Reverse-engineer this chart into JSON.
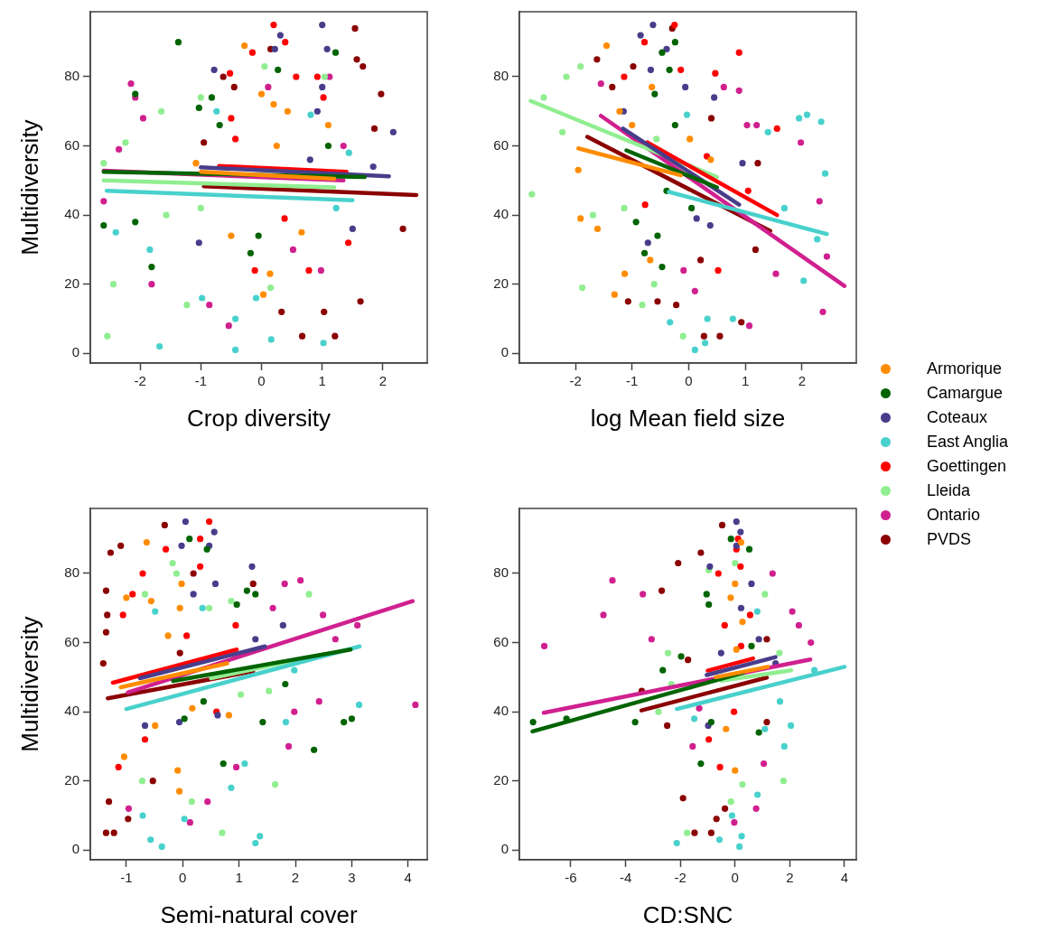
{
  "chart_data": [
    {
      "type": "scatter",
      "ylabel": "Multidiversity",
      "xlabel": "Crop diversity",
      "xlim": [
        -2.82,
        2.73
      ],
      "ylim": [
        -2.8,
        98.8
      ],
      "xticks": [
        -2,
        -1,
        0,
        1,
        2
      ],
      "yticks": [
        0,
        20,
        40,
        60,
        80
      ],
      "grid": false,
      "marker": "circle",
      "series": [
        {
          "type": "scatter",
          "color": "#ff8c00",
          "x": [
            -0.28,
            0,
            0.2,
            0.43,
            -1.08,
            -0.5,
            0.03,
            0.14,
            0.66,
            1.1,
            0.25
          ],
          "values": [
            89,
            75,
            72,
            70,
            55,
            34,
            17,
            23,
            35,
            66,
            60
          ]
        },
        {
          "type": "scatter",
          "color": "#006400",
          "x": [
            -1.37,
            -2.08,
            -2.6,
            -2.08,
            -1.03,
            -0.82,
            0.27,
            1.22,
            1.1,
            -0.05,
            -0.18,
            -1.81,
            -0.69
          ],
          "values": [
            90,
            75,
            37,
            38,
            71,
            74,
            82,
            87,
            60,
            34,
            29,
            25,
            66
          ]
        },
        {
          "type": "scatter",
          "color": "#483d8b",
          "x": [
            1,
            0.31,
            0.22,
            1.08,
            1,
            2.17,
            1.84,
            0.92,
            1.5,
            -0.78,
            -1.03,
            0.8
          ],
          "values": [
            95,
            92,
            88,
            88,
            77,
            64,
            54,
            70,
            36,
            82,
            32,
            56
          ]
        },
        {
          "type": "scatter",
          "color": "#48d1cc",
          "x": [
            -1.68,
            -0.43,
            0.16,
            1.02,
            -2.4,
            -1.84,
            -0.74,
            0.81,
            1.44,
            -0.43,
            -0.98,
            -0.09,
            1.23
          ],
          "values": [
            2,
            1,
            4,
            3,
            35,
            30,
            70,
            69,
            58,
            10,
            16,
            16,
            42
          ]
        },
        {
          "type": "scatter",
          "color": "#ff0000",
          "x": [
            0.2,
            0.39,
            -0.15,
            -0.52,
            0.57,
            0.92,
            1.02,
            -0.5,
            -0.11,
            0.78,
            0.38,
            1.43,
            -0.43
          ],
          "values": [
            95,
            90,
            87,
            81,
            80,
            80,
            74,
            68,
            24,
            24,
            39,
            32,
            62
          ]
        },
        {
          "type": "scatter",
          "color": "#90ee90",
          "x": [
            -2.54,
            -2.44,
            -2.6,
            -2.24,
            -1.65,
            -1,
            0.05,
            1.04,
            -1.23,
            -1.57,
            0.15,
            -1
          ],
          "values": [
            5,
            20,
            55,
            61,
            70,
            74,
            83,
            80,
            14,
            40,
            19,
            42
          ]
        },
        {
          "type": "scatter",
          "color": "#d0208f",
          "x": [
            -2.15,
            -2.08,
            -1.95,
            -2.35,
            -2.6,
            -1.81,
            -0.54,
            1.12,
            0.11,
            1.35,
            -0.86,
            0.98,
            0.52
          ],
          "values": [
            78,
            74,
            68,
            59,
            44,
            20,
            8,
            80,
            77,
            60,
            14,
            24,
            30
          ]
        },
        {
          "type": "scatter",
          "color": "#8b0000",
          "x": [
            1.54,
            1.57,
            1.67,
            1.97,
            1.86,
            2.33,
            0.15,
            -0.63,
            -0.45,
            0.67,
            1.21,
            1.63,
            1.03,
            -0.95,
            0.33
          ],
          "values": [
            94,
            85,
            83,
            75,
            65,
            36,
            88,
            80,
            77,
            5,
            5,
            15,
            12,
            61,
            12
          ]
        },
        {
          "type": "line",
          "marker": "none",
          "color": "#ff8c00",
          "x": [
            -1,
            1.2
          ],
          "values": [
            52.5,
            50.5
          ]
        },
        {
          "type": "line",
          "marker": "none",
          "color": "#006400",
          "x": [
            -2.6,
            1.7
          ],
          "values": [
            52.5,
            51
          ]
        },
        {
          "type": "line",
          "marker": "none",
          "color": "#483d8b",
          "x": [
            -1,
            2.1
          ],
          "values": [
            53.8,
            51.2
          ]
        },
        {
          "type": "line",
          "marker": "none",
          "color": "#48d1cc",
          "x": [
            -2.55,
            1.5
          ],
          "values": [
            47,
            44.3
          ]
        },
        {
          "type": "line",
          "marker": "none",
          "color": "#ff0000",
          "x": [
            -0.7,
            1.4
          ],
          "values": [
            54.2,
            52.5
          ]
        },
        {
          "type": "line",
          "marker": "none",
          "color": "#90ee90",
          "x": [
            -2.6,
            1.2
          ],
          "values": [
            50,
            48
          ]
        },
        {
          "type": "line",
          "marker": "none",
          "color": "#d0208f",
          "x": [
            -2.6,
            1.35
          ],
          "values": [
            52.8,
            50
          ]
        },
        {
          "type": "line",
          "marker": "none",
          "color": "#8b0000",
          "x": [
            -0.95,
            2.55
          ],
          "values": [
            48.3,
            45.8
          ]
        }
      ]
    },
    {
      "type": "scatter",
      "xlabel": "log Mean field size",
      "xlim": [
        -2.99,
        2.96
      ],
      "ylim": [
        -2.8,
        98.8
      ],
      "xticks": [
        -2,
        -1,
        0,
        1,
        2
      ],
      "yticks": [
        0,
        20,
        40,
        60,
        80
      ],
      "grid": false,
      "marker": "circle",
      "legend": "right",
      "series": [
        {
          "type": "scatter",
          "name": "Armorique",
          "color": "#ff8c00",
          "x": [
            -1.45,
            -1.22,
            -1,
            -1.95,
            -1.91,
            -1.61,
            -1.31,
            -1.13,
            -0.65,
            -0.68,
            0.02,
            0.39
          ],
          "values": [
            89,
            70,
            66,
            53,
            39,
            36,
            17,
            23,
            77,
            27,
            62,
            56
          ]
        },
        {
          "type": "scatter",
          "name": "Camargue",
          "color": "#006400",
          "x": [
            -0.24,
            -0.47,
            -0.34,
            -0.6,
            -0.24,
            -0.47,
            -0.78,
            -0.93,
            -0.55,
            0.05,
            -0.39
          ],
          "values": [
            90,
            87,
            82,
            75,
            66,
            25,
            29,
            38,
            34,
            42,
            47
          ]
        },
        {
          "type": "scatter",
          "name": "Coteaux",
          "color": "#483d8b",
          "x": [
            -0.63,
            -0.85,
            -0.39,
            -0.67,
            -0.06,
            0.45,
            0.95,
            -0.72,
            0.38,
            0.14,
            -1.15
          ],
          "values": [
            95,
            92,
            88,
            82,
            77,
            74,
            55,
            32,
            37,
            39,
            70
          ]
        },
        {
          "type": "scatter",
          "name": "East Anglia",
          "color": "#48d1cc",
          "x": [
            0.11,
            0.29,
            -0.33,
            1.95,
            2.09,
            2.34,
            2.41,
            2.27,
            2.03,
            1.4,
            0.78,
            0.33,
            1.69,
            -0.03
          ],
          "values": [
            1,
            3,
            9,
            68,
            69,
            67,
            52,
            33,
            21,
            64,
            10,
            10,
            42,
            69
          ]
        },
        {
          "type": "scatter",
          "name": "Goettingen",
          "color": "#ff0000",
          "x": [
            -0.25,
            -0.78,
            -1.14,
            0.47,
            0.89,
            1.56,
            0.52,
            -0.77,
            1.05,
            -0.14,
            0.32
          ],
          "values": [
            95,
            90,
            80,
            81,
            87,
            65,
            24,
            43,
            47,
            82,
            57
          ]
        },
        {
          "type": "scatter",
          "name": "Lleida",
          "color": "#90ee90",
          "x": [
            -2.77,
            -2.56,
            -2.16,
            -1.91,
            -2.23,
            -1.88,
            -0.82,
            -0.61,
            -0.1,
            -1.14,
            -1.69,
            -0.57
          ],
          "values": [
            46,
            74,
            80,
            83,
            64,
            19,
            14,
            20,
            5,
            42,
            40,
            62
          ]
        },
        {
          "type": "scatter",
          "name": "Ontario",
          "color": "#d0208f",
          "x": [
            -1.55,
            0.62,
            0.89,
            1.98,
            2.31,
            2.37,
            2.44,
            1.07,
            1.54,
            0.11,
            1.03,
            1.2,
            -0.09
          ],
          "values": [
            78,
            77,
            76,
            61,
            44,
            12,
            28,
            8,
            23,
            18,
            66,
            66,
            24
          ]
        },
        {
          "type": "scatter",
          "name": "PVDS",
          "color": "#8b0000",
          "x": [
            -0.29,
            -1.62,
            -0.98,
            -1.35,
            -1.07,
            -0.55,
            0.27,
            0.55,
            0.93,
            1.22,
            1.18,
            0.21,
            -0.22,
            0.4
          ],
          "values": [
            94,
            85,
            83,
            77,
            15,
            15,
            5,
            5,
            9,
            55,
            30,
            27,
            14,
            68
          ]
        },
        {
          "type": "line",
          "marker": "none",
          "color": "#ff8c00",
          "x": [
            -1.95,
            -0.14
          ],
          "values": [
            59.3,
            51.5
          ]
        },
        {
          "type": "line",
          "marker": "none",
          "color": "#006400",
          "x": [
            -1.1,
            0.5
          ],
          "values": [
            58.7,
            48
          ]
        },
        {
          "type": "line",
          "marker": "none",
          "color": "#483d8b",
          "x": [
            -1.16,
            0.89
          ],
          "values": [
            65,
            43
          ]
        },
        {
          "type": "line",
          "marker": "none",
          "color": "#48d1cc",
          "x": [
            -0.35,
            2.44
          ],
          "values": [
            46.7,
            34.5
          ]
        },
        {
          "type": "line",
          "marker": "none",
          "color": "#ff0000",
          "x": [
            -0.73,
            1.56
          ],
          "values": [
            61,
            40
          ]
        },
        {
          "type": "line",
          "marker": "none",
          "color": "#90ee90",
          "x": [
            -2.79,
            0.5
          ],
          "values": [
            73,
            51
          ]
        },
        {
          "type": "line",
          "marker": "none",
          "color": "#d0208f",
          "x": [
            -1.55,
            2.75
          ],
          "values": [
            68.7,
            19.5
          ]
        },
        {
          "type": "line",
          "marker": "none",
          "color": "#8b0000",
          "x": [
            -1.79,
            1.44
          ],
          "values": [
            62.6,
            35.4
          ]
        }
      ]
    },
    {
      "type": "scatter",
      "ylabel": "Multidiversity",
      "xlabel": "Semi-natural cover",
      "xlim": [
        -1.64,
        4.34
      ],
      "ylim": [
        -2.8,
        98.8
      ],
      "xticks": [
        -1,
        0,
        1,
        2,
        3,
        4
      ],
      "yticks": [
        0,
        20,
        40,
        60,
        80
      ],
      "grid": false,
      "marker": "circle",
      "series": [
        {
          "type": "scatter",
          "color": "#ff8c00",
          "x": [
            -0.64,
            -1,
            -0.02,
            -0.56,
            -0.05,
            0.82,
            0.17,
            -0.09,
            -1.04,
            -0.49,
            -0.26,
            -0.06
          ],
          "values": [
            89,
            73,
            77,
            72,
            70,
            39,
            41,
            23,
            27,
            36,
            62,
            17
          ]
        },
        {
          "type": "scatter",
          "color": "#006400",
          "x": [
            0.12,
            0.43,
            1.14,
            0.96,
            1.29,
            2.86,
            3,
            2.33,
            1.82,
            0.72,
            0.37,
            0.03,
            1.42
          ],
          "values": [
            90,
            87,
            75,
            71,
            74,
            37,
            38,
            29,
            48,
            25,
            43,
            38,
            37
          ]
        },
        {
          "type": "scatter",
          "color": "#483d8b",
          "x": [
            0.05,
            0.56,
            0.47,
            -0.02,
            1.23,
            0.58,
            0.19,
            1.29,
            1.78,
            -0.67,
            -0.06,
            0.62
          ],
          "values": [
            95,
            92,
            88,
            88,
            82,
            77,
            74,
            61,
            65,
            36,
            37,
            39
          ]
        },
        {
          "type": "scatter",
          "color": "#48d1cc",
          "x": [
            -0.57,
            -0.37,
            1.29,
            1.37,
            3.13,
            1.98,
            1.83,
            1.1,
            0.86,
            -0.49,
            0.35,
            -0.71,
            0.03
          ],
          "values": [
            3,
            1,
            2,
            4,
            42,
            52,
            37,
            25,
            18,
            69,
            70,
            10,
            9
          ]
        },
        {
          "type": "scatter",
          "color": "#ff0000",
          "x": [
            0.47,
            0.31,
            -0.3,
            -0.71,
            0.31,
            -1.06,
            0.94,
            -1.14,
            -0.67,
            0.6,
            0.07,
            -0.89
          ],
          "values": [
            95,
            90,
            87,
            80,
            82,
            68,
            65,
            24,
            32,
            40,
            62,
            74
          ]
        },
        {
          "type": "scatter",
          "color": "#90ee90",
          "x": [
            -0.18,
            -0.11,
            0.86,
            2.24,
            1.64,
            0.7,
            0.16,
            -0.72,
            1.53,
            1.03,
            -0.67,
            0.47
          ],
          "values": [
            83,
            80,
            72,
            74,
            19,
            5,
            14,
            20,
            46,
            45,
            74,
            70
          ]
        },
        {
          "type": "scatter",
          "color": "#d0208f",
          "x": [
            2.09,
            1.81,
            1.6,
            2.49,
            4.13,
            2.42,
            1.88,
            0.95,
            0.13,
            0.44,
            -0.96,
            1.98,
            3.1,
            2.71
          ],
          "values": [
            78,
            77,
            70,
            68,
            42,
            43,
            30,
            24,
            8,
            14,
            12,
            40,
            65,
            61
          ]
        },
        {
          "type": "scatter",
          "color": "#8b0000",
          "x": [
            -0.32,
            -1.1,
            -1.28,
            -1.36,
            -1.36,
            -1.22,
            -1.31,
            -0.97,
            -1.41,
            -1.36,
            0.19,
            -0.05,
            -0.53,
            1.25,
            -1.34
          ],
          "values": [
            94,
            88,
            86,
            75,
            5,
            5,
            14,
            9,
            54,
            63,
            80,
            57,
            20,
            77,
            68
          ]
        },
        {
          "type": "line",
          "marker": "none",
          "color": "#ff8c00",
          "x": [
            -1.1,
            0.79
          ],
          "values": [
            47.1,
            54
          ]
        },
        {
          "type": "line",
          "marker": "none",
          "color": "#006400",
          "x": [
            -0.17,
            2.98
          ],
          "values": [
            48.9,
            58
          ]
        },
        {
          "type": "line",
          "marker": "none",
          "color": "#483d8b",
          "x": [
            -0.76,
            1.46
          ],
          "values": [
            49.7,
            58.9
          ]
        },
        {
          "type": "line",
          "marker": "none",
          "color": "#48d1cc",
          "x": [
            -1,
            3.14
          ],
          "values": [
            40.8,
            58.9
          ]
        },
        {
          "type": "line",
          "marker": "none",
          "color": "#ff0000",
          "x": [
            -1.24,
            0.96
          ],
          "values": [
            48.4,
            58
          ]
        },
        {
          "type": "line",
          "marker": "none",
          "color": "#90ee90",
          "x": [
            0.5,
            2.21
          ],
          "values": [
            49.7,
            55.6
          ]
        },
        {
          "type": "line",
          "marker": "none",
          "color": "#d0208f",
          "x": [
            -0.97,
            4.08
          ],
          "values": [
            45.6,
            72
          ]
        },
        {
          "type": "line",
          "marker": "none",
          "color": "#8b0000",
          "x": [
            -1.33,
            1.25
          ],
          "values": [
            43.9,
            51.7
          ]
        }
      ]
    },
    {
      "type": "scatter",
      "xlabel": "CD:SNC",
      "xlim": [
        -7.88,
        4.43
      ],
      "ylim": [
        -2.8,
        98.8
      ],
      "xticks": [
        -6,
        -4,
        -2,
        0,
        2,
        4
      ],
      "yticks": [
        0,
        20,
        40,
        60,
        80
      ],
      "grid": false,
      "marker": "circle",
      "series": [
        {
          "type": "scatter",
          "color": "#ff8c00",
          "x": [
            0,
            0.22,
            -0.16,
            0.27,
            0,
            -0.33,
            0.05
          ],
          "values": [
            77,
            89,
            73,
            66,
            23,
            35,
            58
          ]
        },
        {
          "type": "scatter",
          "color": "#006400",
          "x": [
            -7.38,
            -6.16,
            -3.65,
            -2.64,
            -1.97,
            -0.15,
            0.52,
            -1.04,
            -0.96,
            -1.25,
            0.87,
            0.6,
            -0.87
          ],
          "values": [
            37,
            38,
            37,
            52,
            56,
            90,
            87,
            74,
            71,
            25,
            34,
            59,
            37
          ]
        },
        {
          "type": "scatter",
          "color": "#483d8b",
          "x": [
            0.05,
            0.2,
            0.05,
            -0.92,
            0.6,
            0.87,
            1.48,
            -0.98,
            -0.51,
            0.22
          ],
          "values": [
            95,
            92,
            88,
            82,
            77,
            61,
            54,
            36,
            57,
            70
          ]
        },
        {
          "type": "scatter",
          "color": "#48d1cc",
          "x": [
            -2.13,
            -0.57,
            0.16,
            0.24,
            1.8,
            2.04,
            1.64,
            2.9,
            -1.49,
            0.81,
            -0.11,
            1.09,
            0.82
          ],
          "values": [
            2,
            3,
            1,
            4,
            30,
            36,
            43,
            52,
            38,
            69,
            10,
            35,
            16
          ]
        },
        {
          "type": "scatter",
          "color": "#ff0000",
          "x": [
            0.11,
            0.05,
            -0.61,
            0.2,
            -0.55,
            -0.96,
            -0.04,
            0.55,
            -0.38,
            0.22
          ],
          "values": [
            90,
            87,
            80,
            82,
            24,
            32,
            40,
            68,
            65,
            59
          ]
        },
        {
          "type": "scatter",
          "color": "#90ee90",
          "x": [
            -1.75,
            1.77,
            1.62,
            1.09,
            0,
            -0.96,
            -2.45,
            -2.33,
            -2.8,
            -0.15,
            0.27
          ],
          "values": [
            5,
            20,
            57,
            74,
            83,
            81,
            57,
            48,
            40,
            14,
            19
          ]
        },
        {
          "type": "scatter",
          "color": "#d0208f",
          "x": [
            -6.97,
            -4.48,
            -4.81,
            -3.37,
            -3.05,
            1.37,
            2.09,
            2.33,
            2.77,
            -0.03,
            0.77,
            1.05,
            -1.55,
            -1.31
          ],
          "values": [
            59,
            78,
            68,
            74,
            61,
            80,
            69,
            65,
            60,
            8,
            12,
            25,
            30,
            41
          ]
        },
        {
          "type": "scatter",
          "color": "#8b0000",
          "x": [
            -0.47,
            -2.08,
            -1.25,
            -2.68,
            -3.41,
            -2.48,
            -1.9,
            -1.48,
            -0.87,
            -0.68,
            1.16,
            -1.72,
            1.16,
            -0.37
          ],
          "values": [
            94,
            83,
            86,
            75,
            46,
            36,
            15,
            5,
            5,
            9,
            37,
            55,
            61,
            12
          ]
        },
        {
          "type": "line",
          "marker": "none",
          "color": "#ff8c00",
          "x": [
            -0.7,
            1.2
          ],
          "values": [
            50,
            53
          ]
        },
        {
          "type": "line",
          "marker": "none",
          "color": "#006400",
          "x": [
            -7.4,
            0.3
          ],
          "values": [
            34.3,
            51.3
          ]
        },
        {
          "type": "line",
          "marker": "none",
          "color": "#483d8b",
          "x": [
            -1.04,
            1.48
          ],
          "values": [
            50.6,
            55.8
          ]
        },
        {
          "type": "line",
          "marker": "none",
          "color": "#48d1cc",
          "x": [
            -2.13,
            4
          ],
          "values": [
            40.8,
            53
          ]
        },
        {
          "type": "line",
          "marker": "none",
          "color": "#ff0000",
          "x": [
            -1,
            0.66
          ],
          "values": [
            51.9,
            55.4
          ]
        },
        {
          "type": "line",
          "marker": "none",
          "color": "#90ee90",
          "x": [
            -0.5,
            2.05
          ],
          "values": [
            49,
            52
          ]
        },
        {
          "type": "line",
          "marker": "none",
          "color": "#d0208f",
          "x": [
            -6.99,
            2.75
          ],
          "values": [
            39.7,
            55.1
          ]
        },
        {
          "type": "line",
          "marker": "none",
          "color": "#8b0000",
          "x": [
            -3.42,
            1.16
          ],
          "values": [
            40.4,
            49.9
          ]
        }
      ]
    }
  ]
}
